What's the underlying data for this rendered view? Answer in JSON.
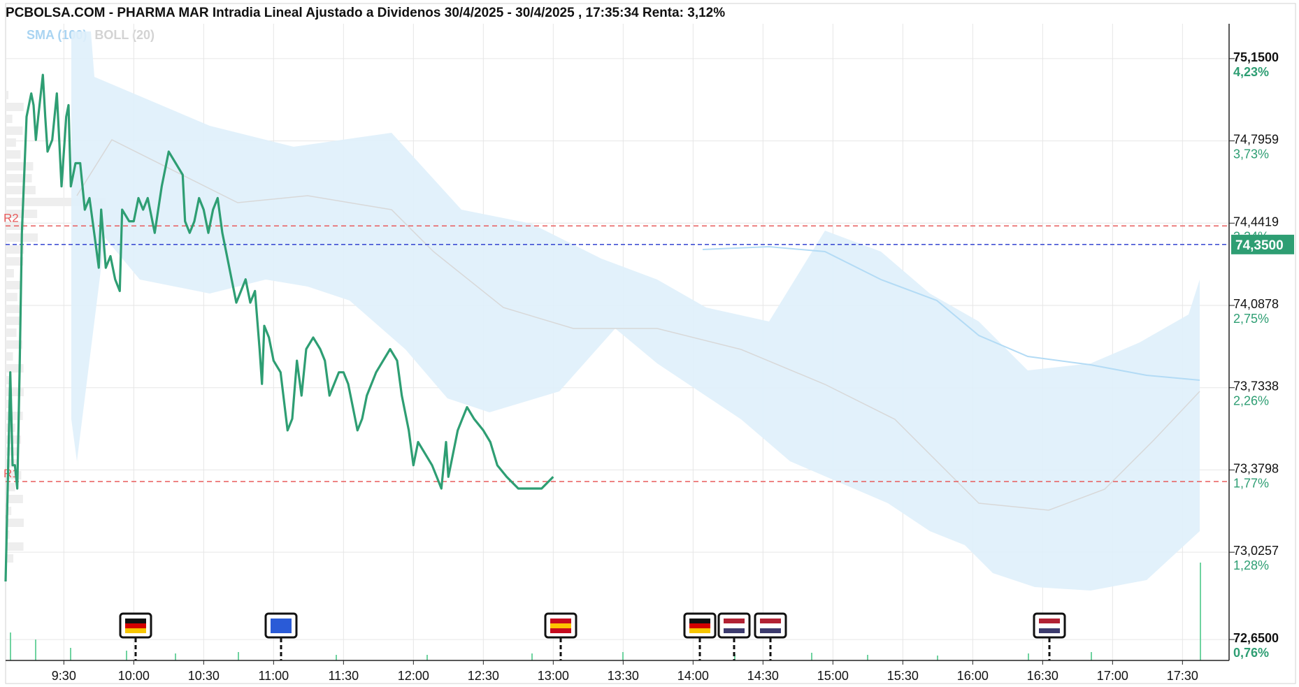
{
  "header": {
    "title": "PCBOLSA.COM - PHARMA MAR Intradia Lineal Ajustado a Dividenos 30/4/2025 - 30/4/2025 , 17:35:34 Renta: 3,12%"
  },
  "legend": {
    "sma": "SMA (100)",
    "boll": "BOLL (20)"
  },
  "colors": {
    "price_line": "#2e9e73",
    "sma_line": "#b3dbf5",
    "boll_band": "#dff0fb",
    "boll_mid": "#d8d8d8",
    "resistance": "#e85c5c",
    "current": "#2233cc",
    "axis_pct": "#2e9e73",
    "grid": "#e6e6e6"
  },
  "chart_data": {
    "type": "line",
    "y_axis": {
      "range": [
        72.56,
        75.3
      ],
      "ticks": [
        {
          "value": 75.15,
          "label": "75,1500",
          "pct": "4,23%",
          "bold": true
        },
        {
          "value": 74.7959,
          "label": "74,7959",
          "pct": "3,73%",
          "bold": false
        },
        {
          "value": 74.4419,
          "label": "74,4419",
          "pct": "3,24%",
          "bold": false
        },
        {
          "value": 74.0878,
          "label": "74,0878",
          "pct": "2,75%",
          "bold": false
        },
        {
          "value": 73.7338,
          "label": "73,7338",
          "pct": "2,26%",
          "bold": false
        },
        {
          "value": 73.3798,
          "label": "73,3798",
          "pct": "1,77%",
          "bold": false
        },
        {
          "value": 73.0257,
          "label": "73,0257",
          "pct": "1,28%",
          "bold": false
        },
        {
          "value": 72.65,
          "label": "72,6500",
          "pct": "0,76%",
          "bold": true
        }
      ]
    },
    "x_axis": {
      "range": [
        "9:05",
        "17:50"
      ],
      "ticks": [
        "9:30",
        "10:00",
        "10:30",
        "11:00",
        "11:30",
        "12:00",
        "12:30",
        "13:00",
        "13:30",
        "14:00",
        "14:30",
        "15:00",
        "15:30",
        "16:00",
        "16:30",
        "17:00",
        "17:30"
      ]
    },
    "current_price": {
      "value": 74.35,
      "label": "74,3500"
    },
    "levels": [
      {
        "name": "R2",
        "value": 74.43
      },
      {
        "name": "R1",
        "value": 73.33
      }
    ],
    "series": [
      {
        "name": "PHARMA MAR",
        "points": [
          [
            "9:05",
            72.9
          ],
          [
            "9:07",
            73.8
          ],
          [
            "9:08",
            73.4
          ],
          [
            "9:09",
            73.4
          ],
          [
            "9:10",
            73.3
          ],
          [
            "9:11",
            73.8
          ],
          [
            "9:12",
            74.4
          ],
          [
            "9:14",
            74.9
          ],
          [
            "9:16",
            75.0
          ],
          [
            "9:17",
            74.95
          ],
          [
            "9:18",
            74.8
          ],
          [
            "9:19",
            74.9
          ],
          [
            "9:21",
            75.08
          ],
          [
            "9:22",
            74.9
          ],
          [
            "9:23",
            74.75
          ],
          [
            "9:25",
            74.8
          ],
          [
            "9:27",
            75.0
          ],
          [
            "9:28",
            74.8
          ],
          [
            "9:29",
            74.6
          ],
          [
            "9:31",
            74.9
          ],
          [
            "9:32",
            74.95
          ],
          [
            "9:33",
            74.6
          ],
          [
            "9:35",
            74.7
          ],
          [
            "9:37",
            74.7
          ],
          [
            "9:39",
            74.5
          ],
          [
            "9:41",
            74.55
          ],
          [
            "9:43",
            74.4
          ],
          [
            "9:45",
            74.25
          ],
          [
            "9:46",
            74.5
          ],
          [
            "9:48",
            74.25
          ],
          [
            "9:50",
            74.3
          ],
          [
            "9:52",
            74.2
          ],
          [
            "9:54",
            74.15
          ],
          [
            "9:55",
            74.5
          ],
          [
            "9:58",
            74.45
          ],
          [
            "10:00",
            74.45
          ],
          [
            "10:02",
            74.55
          ],
          [
            "10:04",
            74.5
          ],
          [
            "10:06",
            74.55
          ],
          [
            "10:09",
            74.4
          ],
          [
            "10:12",
            74.6
          ],
          [
            "10:15",
            74.75
          ],
          [
            "10:18",
            74.7
          ],
          [
            "10:21",
            74.65
          ],
          [
            "10:22",
            74.45
          ],
          [
            "10:24",
            74.4
          ],
          [
            "10:26",
            74.45
          ],
          [
            "10:28",
            74.55
          ],
          [
            "10:30",
            74.5
          ],
          [
            "10:32",
            74.4
          ],
          [
            "10:34",
            74.5
          ],
          [
            "10:36",
            74.55
          ],
          [
            "10:38",
            74.4
          ],
          [
            "10:40",
            74.3
          ],
          [
            "10:42",
            74.2
          ],
          [
            "10:44",
            74.1
          ],
          [
            "10:46",
            74.15
          ],
          [
            "10:48",
            74.2
          ],
          [
            "10:50",
            74.1
          ],
          [
            "10:52",
            74.15
          ],
          [
            "10:54",
            73.9
          ],
          [
            "10:55",
            73.75
          ],
          [
            "10:56",
            74.0
          ],
          [
            "10:58",
            73.95
          ],
          [
            "11:00",
            73.85
          ],
          [
            "11:03",
            73.8
          ],
          [
            "11:06",
            73.55
          ],
          [
            "11:08",
            73.6
          ],
          [
            "11:10",
            73.85
          ],
          [
            "11:12",
            73.7
          ],
          [
            "11:14",
            73.9
          ],
          [
            "11:17",
            73.95
          ],
          [
            "11:20",
            73.9
          ],
          [
            "11:22",
            73.85
          ],
          [
            "11:24",
            73.7
          ],
          [
            "11:26",
            73.75
          ],
          [
            "11:28",
            73.8
          ],
          [
            "11:30",
            73.8
          ],
          [
            "11:32",
            73.75
          ],
          [
            "11:34",
            73.65
          ],
          [
            "11:36",
            73.55
          ],
          [
            "11:38",
            73.6
          ],
          [
            "11:40",
            73.7
          ],
          [
            "11:44",
            73.8
          ],
          [
            "11:47",
            73.85
          ],
          [
            "11:50",
            73.9
          ],
          [
            "11:53",
            73.85
          ],
          [
            "11:55",
            73.7
          ],
          [
            "11:58",
            73.55
          ],
          [
            "12:00",
            73.4
          ],
          [
            "12:02",
            73.5
          ],
          [
            "12:05",
            73.45
          ],
          [
            "12:08",
            73.4
          ],
          [
            "12:10",
            73.35
          ],
          [
            "12:12",
            73.3
          ],
          [
            "12:14",
            73.5
          ],
          [
            "12:15",
            73.35
          ],
          [
            "12:17",
            73.45
          ],
          [
            "12:19",
            73.55
          ],
          [
            "12:21",
            73.6
          ],
          [
            "12:23",
            73.65
          ],
          [
            "12:26",
            73.6
          ],
          [
            "12:30",
            73.55
          ],
          [
            "12:33",
            73.5
          ],
          [
            "12:36",
            73.4
          ],
          [
            "12:40",
            73.35
          ],
          [
            "12:45",
            73.3
          ],
          [
            "12:50",
            73.3
          ],
          [
            "12:55",
            73.3
          ],
          [
            "13:00",
            73.35
          ]
        ]
      }
    ]
  },
  "markers": {
    "flags": [
      "de-flag",
      "eu-flag",
      "es-flag",
      "de-flag",
      "us-flag",
      "us-flag",
      "us-flag"
    ]
  }
}
